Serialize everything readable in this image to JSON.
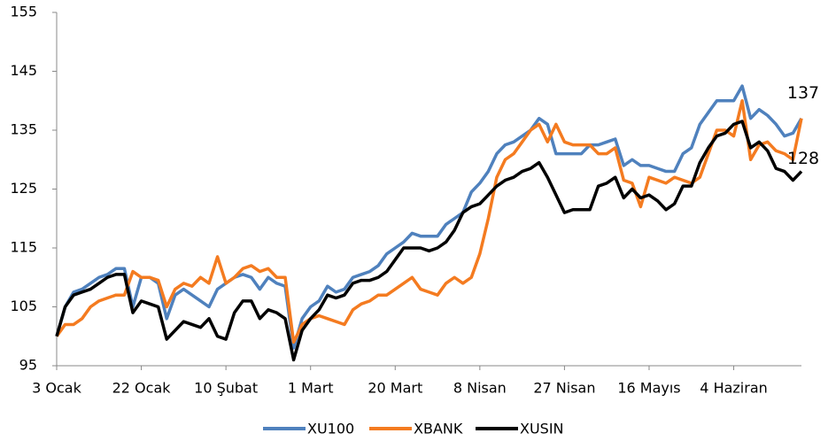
{
  "chart_data": {
    "type": "line",
    "categories": [
      "3 Ocak",
      null,
      null,
      null,
      null,
      null,
      null,
      null,
      null,
      null,
      "22 Ocak",
      null,
      null,
      null,
      null,
      null,
      null,
      null,
      null,
      null,
      "10 Şubat",
      null,
      null,
      null,
      null,
      null,
      null,
      null,
      null,
      null,
      "1 Mart",
      null,
      null,
      null,
      null,
      null,
      null,
      null,
      null,
      null,
      "20 Mart",
      null,
      null,
      null,
      null,
      null,
      null,
      null,
      null,
      null,
      "8 Nisan",
      null,
      null,
      null,
      null,
      null,
      null,
      null,
      null,
      null,
      "27 Nisan",
      null,
      null,
      null,
      null,
      null,
      null,
      null,
      null,
      null,
      "16 Mayıs",
      null,
      null,
      null,
      null,
      null,
      null,
      null,
      null,
      null,
      "4 Haziran",
      null,
      null,
      null,
      null,
      null,
      null,
      null,
      null
    ],
    "series": [
      {
        "name": "XU100",
        "color": "#4f81bd",
        "values": [
          100,
          105,
          107.5,
          108,
          109,
          110,
          110.5,
          111.5,
          111.5,
          105,
          110,
          110,
          109,
          103,
          107,
          108,
          107,
          106,
          105,
          108,
          109,
          110,
          110.5,
          110,
          108,
          110,
          109,
          108.5,
          98,
          103,
          105,
          106,
          108.5,
          107.5,
          108,
          110,
          110.5,
          111,
          112,
          114,
          115,
          116,
          117.5,
          117,
          117,
          117,
          119,
          120,
          121,
          124.5,
          126,
          128,
          131,
          132.5,
          133,
          134,
          135,
          137,
          136,
          131,
          131,
          131,
          131,
          132.5,
          132.5,
          133,
          133.5,
          129,
          130,
          129,
          129,
          128.5,
          128,
          128,
          131,
          132,
          136,
          138,
          140,
          140,
          140,
          142.5,
          137,
          138.5,
          137.5,
          136,
          134,
          134.5,
          137
        ]
      },
      {
        "name": "XBANK",
        "color": "#f47b20",
        "label_last": true,
        "values": [
          100,
          102,
          102,
          103,
          105,
          106,
          106.5,
          107,
          107,
          111,
          110,
          110,
          109.5,
          105,
          108,
          109,
          108.5,
          110,
          109,
          113.5,
          109,
          110,
          111.5,
          112,
          111,
          111.5,
          110,
          110,
          99,
          102,
          103,
          103.5,
          103,
          102.5,
          102,
          104.5,
          105.5,
          106,
          107,
          107,
          108,
          109,
          110,
          108,
          107.5,
          107,
          109,
          110,
          109,
          110,
          114,
          120,
          127,
          130,
          131,
          133,
          135,
          136,
          133,
          136,
          133,
          132.5,
          132.5,
          132.5,
          131,
          131,
          132,
          126.5,
          126,
          122,
          127,
          126.5,
          126,
          127,
          126.5,
          126,
          127,
          131,
          135,
          135,
          134,
          140,
          130,
          132.5,
          133,
          131.5,
          131,
          130,
          137
        ]
      },
      {
        "name": "XUSIN",
        "color": "#000000",
        "label_last": true,
        "values": [
          100,
          105,
          107,
          107.5,
          108,
          109,
          110,
          110.5,
          110.5,
          104,
          106,
          105.5,
          105,
          99.5,
          101,
          102.5,
          102,
          101.5,
          103,
          100,
          99.5,
          104,
          106,
          106,
          103,
          104.5,
          104,
          103,
          96,
          101,
          103,
          104.5,
          107,
          106.5,
          107,
          109,
          109.5,
          109.5,
          110,
          111,
          113,
          115,
          115,
          115,
          114.5,
          115,
          116,
          118,
          121,
          122,
          122.5,
          124,
          125.5,
          126.5,
          127,
          128,
          128.5,
          129.5,
          127,
          124,
          121,
          121.5,
          121.5,
          121.5,
          125.5,
          126,
          127,
          123.5,
          125,
          123.5,
          124,
          123,
          121.5,
          122.5,
          125.5,
          125.5,
          129.5,
          132,
          134,
          134.5,
          136,
          136.5,
          132,
          133,
          131.5,
          128.5,
          128,
          126.5,
          128
        ]
      }
    ],
    "ylim": [
      95,
      155
    ],
    "yticks": [
      95,
      105,
      115,
      125,
      135,
      145,
      155
    ],
    "grid": false,
    "legend": "bottom"
  }
}
